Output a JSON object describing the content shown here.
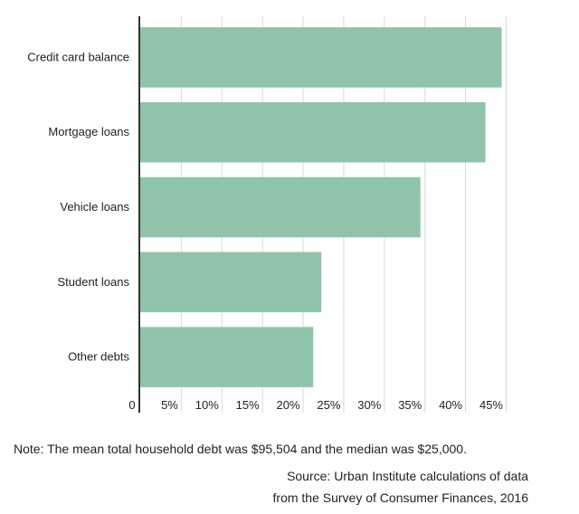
{
  "chart_data": {
    "type": "bar",
    "orientation": "horizontal",
    "categories": [
      "Credit card balance",
      "Mortgage loans",
      "Vehicle loans",
      "Student loans",
      "Other debts"
    ],
    "values": [
      44.5,
      42.5,
      34.5,
      22.3,
      21.3
    ],
    "xlim": [
      0,
      45
    ],
    "xticks": [
      "0",
      "5%",
      "10%",
      "15%",
      "20%",
      "25%",
      "30%",
      "35%",
      "40%",
      "45%"
    ],
    "xtick_values": [
      0,
      5,
      10,
      15,
      20,
      25,
      30,
      35,
      40,
      45
    ],
    "grid": "vertical",
    "bar_color": "#8fc4a9",
    "title": "",
    "xlabel": "",
    "ylabel": ""
  },
  "note": "Note: The mean total household debt was $95,504 and the median was $25,000.",
  "source_line1": "Source: Urban Institute calculations of data",
  "source_line2": "from the Survey of Consumer Finances, 2016"
}
